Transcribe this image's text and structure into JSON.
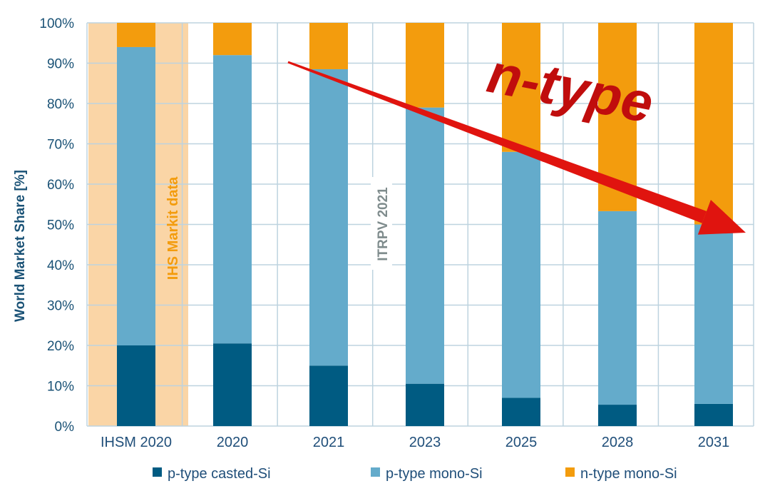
{
  "chart_data": {
    "type": "bar",
    "stacked": true,
    "ylabel": "World Market Share [%]",
    "ylim": [
      0,
      100
    ],
    "yticks": [
      "0%",
      "10%",
      "20%",
      "30%",
      "40%",
      "50%",
      "60%",
      "70%",
      "80%",
      "90%",
      "100%"
    ],
    "grid": true,
    "legend_position": "bottom",
    "categories": [
      "IHSM 2020",
      "2020",
      "2021",
      "2023",
      "2025",
      "2028",
      "2031"
    ],
    "series": [
      {
        "name": "p-type casted-Si",
        "color": "#005b82",
        "values": [
          20,
          20.5,
          15,
          10.5,
          7,
          5.3,
          5.5
        ]
      },
      {
        "name": "p-type mono-Si",
        "color": "#64abcb",
        "values": [
          74,
          71.5,
          73.5,
          68.5,
          61,
          48,
          44.5
        ]
      },
      {
        "name": "n-type mono-Si",
        "color": "#f39c0d",
        "values": [
          6,
          8,
          11.5,
          21,
          32,
          46.7,
          50
        ]
      }
    ],
    "annotations": {
      "ihs_text": "IHS Markit data",
      "itrpv_text": "ITRPV 2021",
      "arrow_text": "n-type"
    },
    "colors": {
      "ihs_shade": "#fad5a6",
      "ihs_text": "#f39c0d",
      "grid": "#bdd3df",
      "axis_text": "#1a5276",
      "arrow": "#e0140f",
      "arrow_text": "#c00d0d"
    }
  }
}
